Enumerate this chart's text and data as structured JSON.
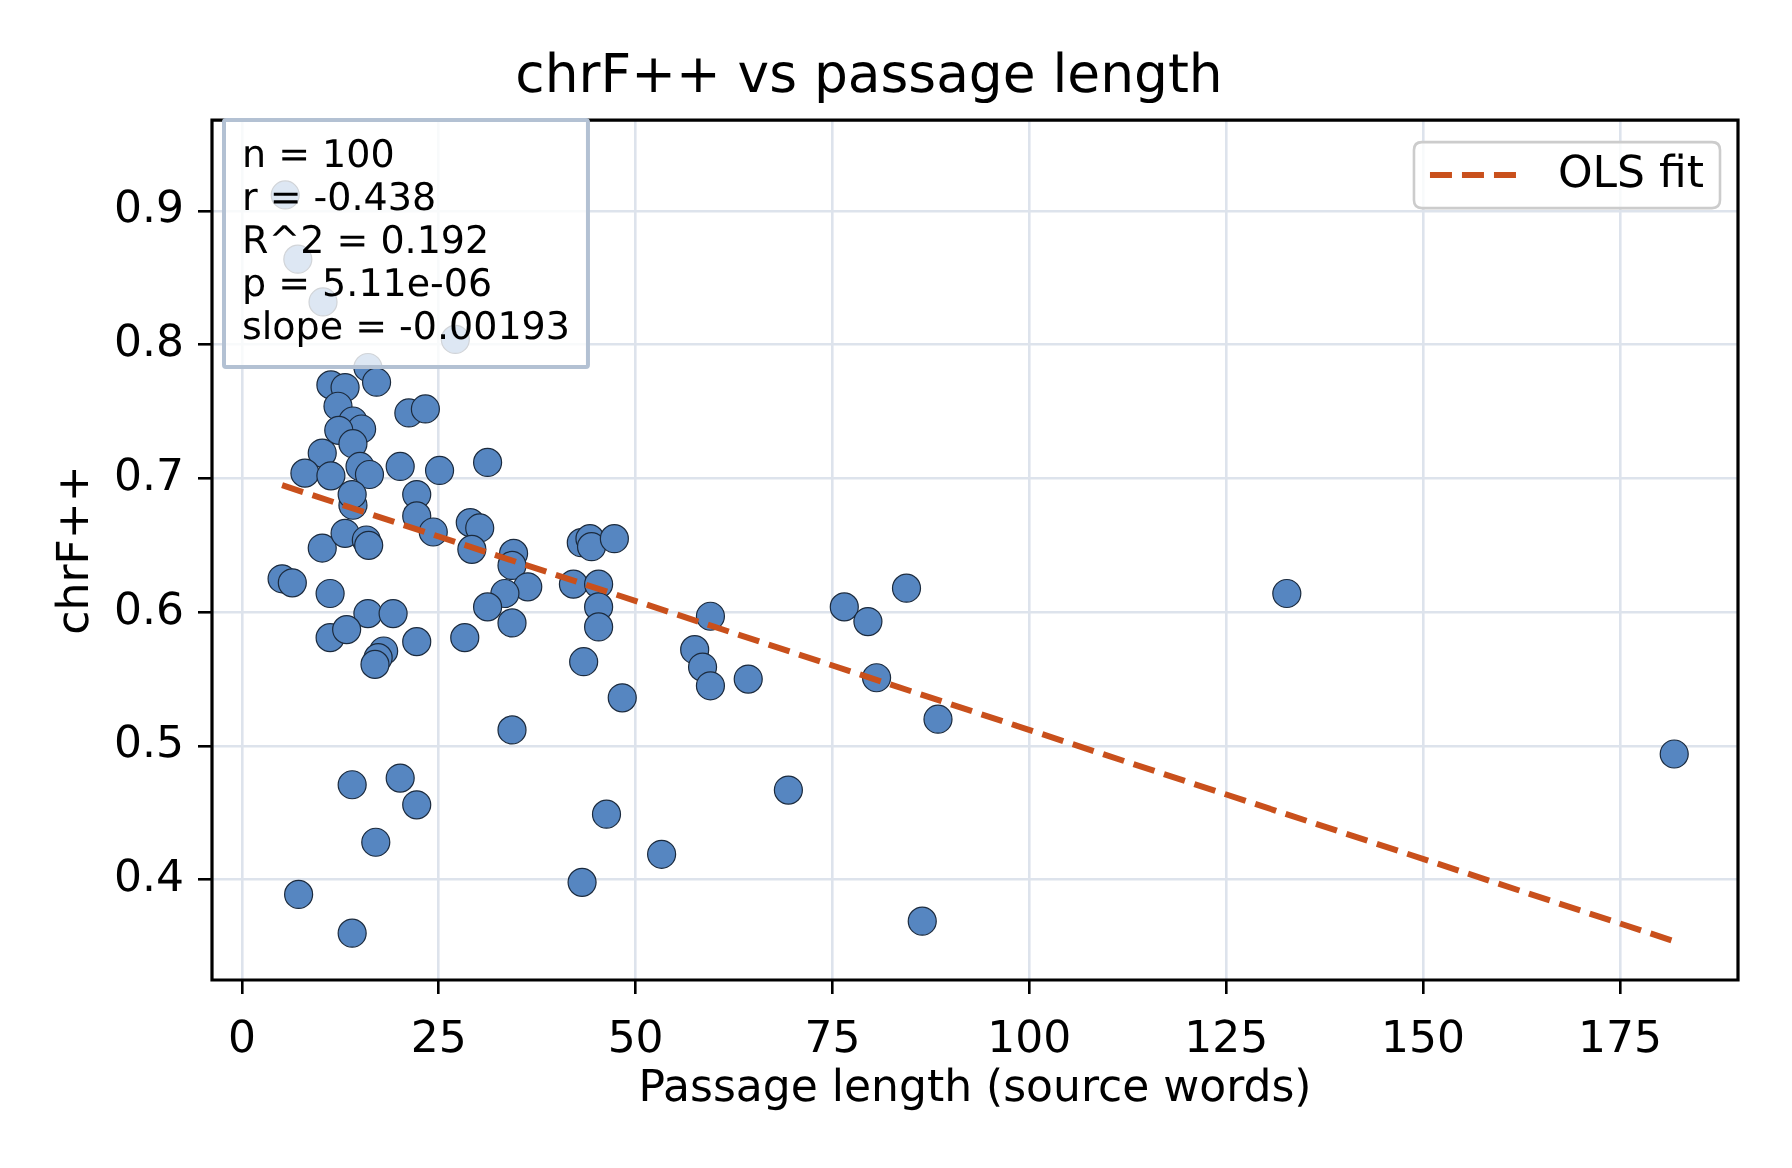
{
  "chart_data": {
    "type": "scatter",
    "title": "chrF++ vs passage length",
    "xlabel": "Passage length (source words)",
    "ylabel": "chrF++",
    "annotations": [
      "n = 100",
      "r = -0.438",
      "R^2 = 0.192",
      "p = 5.11e-06",
      "slope = -0.00193"
    ],
    "xlim": [
      -3.8,
      190
    ],
    "xticks": [
      0,
      25,
      50,
      75,
      100,
      125,
      150,
      175
    ],
    "ylim": [
      0.325,
      0.968
    ],
    "yticks": [
      0.4,
      0.5,
      0.6,
      0.7,
      0.8,
      0.9
    ],
    "grid": true,
    "legend": "top right",
    "marker": "circle",
    "series": [
      {
        "color": "#5686c1",
        "x": [
          5.5,
          7.1,
          10.3,
          27.1,
          16.0,
          11.3,
          13.1,
          17.1,
          12.2,
          14.1,
          15.2,
          12.3,
          21.2,
          23.3,
          14.1,
          10.2,
          8.0,
          11.3,
          15.0,
          16.2,
          20.1,
          25.1,
          31.2,
          5.1,
          6.4,
          10.2,
          13.1,
          14.1,
          14.0,
          15.8,
          16.1,
          22.2,
          22.2,
          24.3,
          29.0,
          30.2,
          29.2,
          34.5,
          34.3,
          36.3,
          33.4,
          31.2,
          42.1,
          43.1,
          44.2,
          44.4,
          47.3,
          45.3,
          45.3,
          11.2,
          16.0,
          19.2,
          59.5,
          76.5,
          84.4,
          132.7,
          11.2,
          13.3,
          18.0,
          17.3,
          16.9,
          22.2,
          28.3,
          34.3,
          45.3,
          43.4,
          48.3,
          57.5,
          58.5,
          59.5,
          64.3,
          79.5,
          80.6,
          88.4,
          34.3,
          181.9,
          14.0,
          20.1,
          22.2,
          46.3,
          69.4,
          17.0,
          53.3,
          43.2,
          7.2,
          14.0,
          86.4
        ],
        "values": [
          0.912,
          0.864,
          0.832,
          0.804,
          0.783,
          0.77,
          0.768,
          0.772,
          0.754,
          0.743,
          0.737,
          0.736,
          0.749,
          0.752,
          0.726,
          0.719,
          0.704,
          0.702,
          0.709,
          0.703,
          0.709,
          0.706,
          0.712,
          0.625,
          0.622,
          0.648,
          0.659,
          0.68,
          0.688,
          0.654,
          0.65,
          0.688,
          0.672,
          0.66,
          0.667,
          0.663,
          0.647,
          0.644,
          0.635,
          0.619,
          0.614,
          0.604,
          0.621,
          0.652,
          0.655,
          0.649,
          0.655,
          0.621,
          0.604,
          0.614,
          0.599,
          0.599,
          0.597,
          0.604,
          0.618,
          0.614,
          0.581,
          0.587,
          0.571,
          0.566,
          0.561,
          0.578,
          0.581,
          0.592,
          0.589,
          0.563,
          0.536,
          0.572,
          0.559,
          0.545,
          0.55,
          0.593,
          0.551,
          0.52,
          0.512,
          0.494,
          0.471,
          0.476,
          0.456,
          0.449,
          0.467,
          0.428,
          0.419,
          0.398,
          0.389,
          0.36,
          0.369
        ]
      },
      {
        "type": "line",
        "name": "OLS fit",
        "color": "#c9501c",
        "line_style": "dashed",
        "marker": "none",
        "x": [
          5.1,
          181.9
        ],
        "values": [
          0.695,
          0.354
        ]
      }
    ]
  }
}
